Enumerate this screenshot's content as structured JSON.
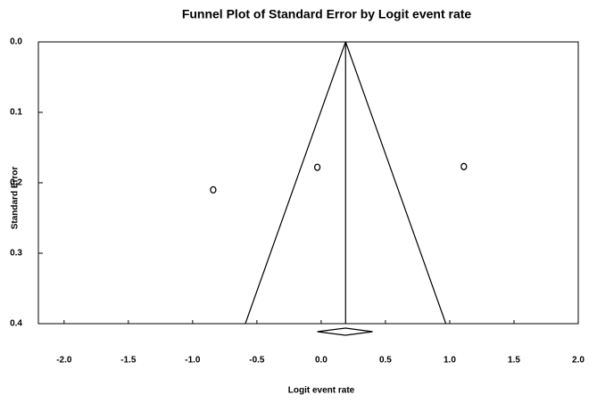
{
  "chart_data": {
    "type": "funnel",
    "title": "Funnel Plot of Standard Error by Logit event rate",
    "x_label": "Logit event rate",
    "y_label": "Standard Error",
    "x": [
      -0.84,
      -0.03,
      1.11
    ],
    "values": [
      0.21,
      0.178,
      0.177
    ],
    "summary": {
      "estimate": 0.19,
      "lower": -0.03,
      "upper": 0.4
    },
    "funnel_bottom": [
      -0.59,
      0.97
    ],
    "xlim": [
      -2.2,
      2.0
    ],
    "xticks": [
      {
        "value": -2,
        "label": "-2.0"
      },
      -1.5,
      {
        "value": -1,
        "label": "-1.0"
      },
      -0.5,
      {
        "value": 0,
        "label": "0.0"
      },
      0.5,
      {
        "value": 1,
        "label": "1.0"
      },
      1.5,
      {
        "value": 2,
        "label": "2.0"
      }
    ],
    "ylim": [
      0,
      0.4
    ],
    "yticks": [
      {
        "value": 0,
        "label": "0.0"
      },
      0.1,
      0.2,
      0.3,
      0.4
    ],
    "y_inverted": true,
    "color": "#000000"
  }
}
